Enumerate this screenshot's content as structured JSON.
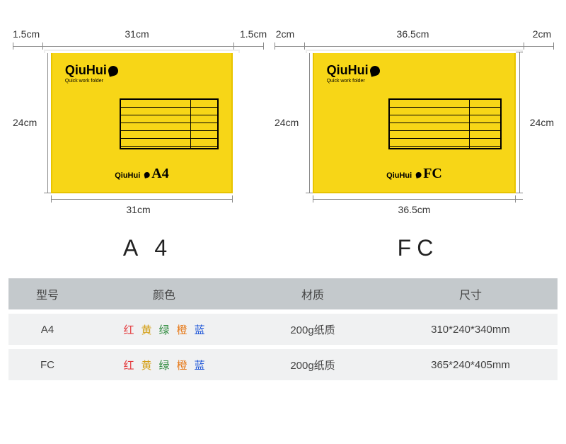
{
  "brand": {
    "name": "QiuHui",
    "tagline": "Quick work folder"
  },
  "folders": {
    "a4": {
      "tabLeft": "1.5cm",
      "tabRight": "1.5cm",
      "width": "31cm",
      "height": "24cm",
      "bottomWidth": "31cm",
      "sizeLabel": "A4",
      "bigLabel": "A 4",
      "color": "#f7d617"
    },
    "fc": {
      "tabLeft": "2cm",
      "tabRight": "2cm",
      "width": "36.5cm",
      "height": "24cm",
      "bottomWidth": "36.5cm",
      "sizeLabel": "FC",
      "bigLabel": "FC",
      "color": "#f7d617"
    }
  },
  "table": {
    "headers": {
      "model": "型号",
      "color": "颜色",
      "material": "材质",
      "size": "尺寸"
    },
    "colorSwatches": [
      {
        "char": "红",
        "cls": "c-red"
      },
      {
        "char": "黄",
        "cls": "c-yellow"
      },
      {
        "char": "绿",
        "cls": "c-green"
      },
      {
        "char": "橙",
        "cls": "c-orange"
      },
      {
        "char": "蓝",
        "cls": "c-blue"
      }
    ],
    "rows": [
      {
        "model": "A4",
        "material": "200g纸质",
        "size": "310*240*340mm"
      },
      {
        "model": "FC",
        "material": "200g纸质",
        "size": "365*240*405mm"
      }
    ]
  },
  "style": {
    "headerBg": "#c4c9cc",
    "rowBg": "#f0f1f2",
    "textColor": "#444444",
    "dimColor": "#888888",
    "folderBorder": "#e8c400"
  }
}
